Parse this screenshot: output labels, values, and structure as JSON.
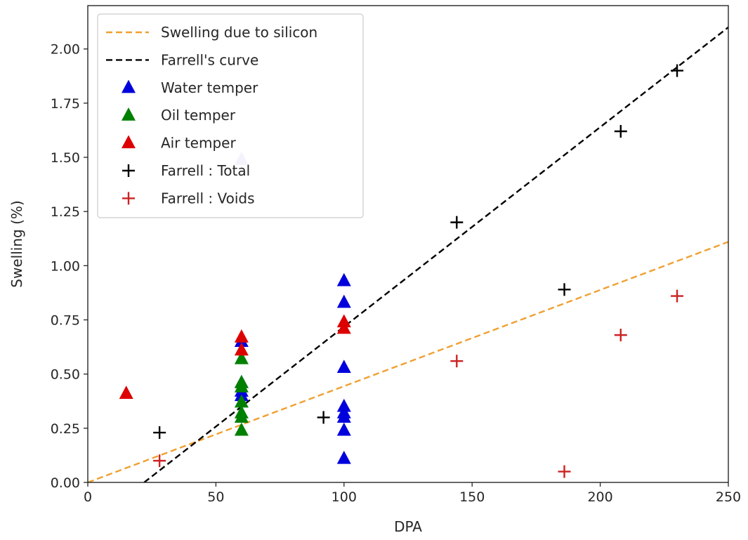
{
  "chart_data": {
    "type": "scatter",
    "xlabel": "DPA",
    "ylabel": "Swelling (%)",
    "xlim": [
      0,
      250
    ],
    "ylim": [
      0,
      2.2
    ],
    "x_ticks": [
      "0",
      "50",
      "100",
      "150",
      "200",
      "250"
    ],
    "y_ticks": [
      "0.00",
      "0.25",
      "0.50",
      "0.75",
      "1.00",
      "1.25",
      "1.50",
      "1.75",
      "2.00"
    ],
    "grid": false,
    "legend_position": "top-left",
    "series": [
      {
        "name": "Swelling due to silicon",
        "kind": "dashed-line",
        "color": "#f0a030",
        "points": [
          [
            0,
            0.0
          ],
          [
            250,
            1.11
          ]
        ]
      },
      {
        "name": "Farrell's curve",
        "kind": "dashed-line",
        "color": "#000000",
        "points": [
          [
            22,
            0.0
          ],
          [
            250,
            2.1
          ]
        ]
      },
      {
        "name": "Water temper",
        "kind": "triangle",
        "color": "#0000dd",
        "points": [
          [
            60,
            0.46
          ],
          [
            60,
            0.42
          ],
          [
            60,
            0.4
          ],
          [
            60,
            0.65
          ],
          [
            100,
            0.93
          ],
          [
            100,
            0.83
          ],
          [
            100,
            0.53
          ],
          [
            100,
            0.35
          ],
          [
            100,
            0.32
          ],
          [
            100,
            0.3
          ],
          [
            100,
            0.24
          ],
          [
            100,
            0.11
          ]
        ]
      },
      {
        "name": "Oil temper",
        "kind": "triangle",
        "color": "#008000",
        "points": [
          [
            60,
            0.57
          ],
          [
            60,
            0.46
          ],
          [
            60,
            0.44
          ],
          [
            60,
            0.37
          ],
          [
            60,
            0.32
          ],
          [
            60,
            0.3
          ],
          [
            60,
            0.24
          ]
        ]
      },
      {
        "name": "Air temper",
        "kind": "triangle",
        "color": "#dd0000",
        "points": [
          [
            15,
            0.41
          ],
          [
            60,
            0.67
          ],
          [
            60,
            0.61
          ],
          [
            100,
            0.74
          ],
          [
            100,
            0.71
          ]
        ]
      },
      {
        "name": "Farrell : Total",
        "kind": "plus",
        "color": "#000000",
        "points": [
          [
            28,
            0.23
          ],
          [
            92,
            0.3
          ],
          [
            144,
            1.2
          ],
          [
            186,
            0.89
          ],
          [
            208,
            1.62
          ],
          [
            230,
            1.9
          ]
        ]
      },
      {
        "name": "Farrell : Voids",
        "kind": "plus",
        "color": "#cc2222",
        "points": [
          [
            28,
            0.1
          ],
          [
            144,
            0.56
          ],
          [
            186,
            0.05
          ],
          [
            208,
            0.68
          ],
          [
            230,
            0.86
          ]
        ]
      }
    ],
    "annotations": [
      {
        "kind": "triangle",
        "color": "#b0b0e6",
        "points": [
          [
            60,
            1.49
          ]
        ]
      }
    ]
  }
}
